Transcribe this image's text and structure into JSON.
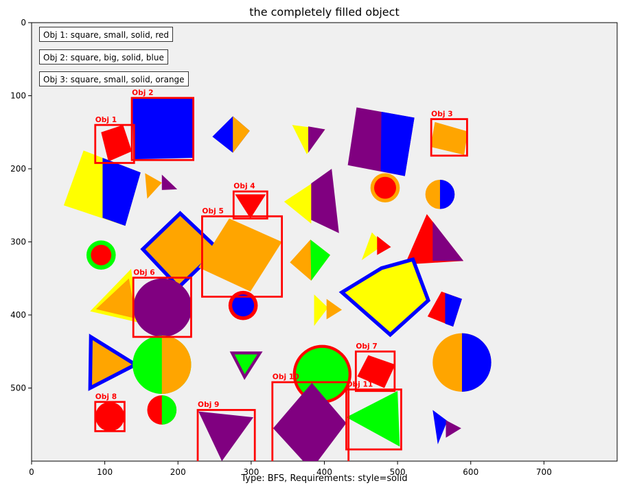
{
  "chart_data": {
    "type": "scatter",
    "title": "the completely filled object",
    "caption": "Type: BFS, Requirements: style=solid",
    "xlim": [
      0,
      800
    ],
    "ylim": [
      600,
      0
    ],
    "x_ticks": [
      0,
      100,
      200,
      300,
      400,
      500,
      600,
      700
    ],
    "y_ticks": [
      0,
      100,
      200,
      300,
      400,
      500
    ],
    "legend": [
      "Obj 1: square, small, solid, red",
      "Obj 2: square, big, solid, blue",
      "Obj 3: square, small, solid, orange"
    ],
    "boxes": [
      {
        "label": "Obj 1",
        "x": [
          87,
          140
        ],
        "y": [
          140,
          192
        ]
      },
      {
        "label": "Obj 2",
        "x": [
          137,
          221
        ],
        "y": [
          103,
          188
        ]
      },
      {
        "label": "Obj 3",
        "x": [
          546,
          595
        ],
        "y": [
          132,
          182
        ]
      },
      {
        "label": "Obj 4",
        "x": [
          276,
          322
        ],
        "y": [
          231,
          268
        ]
      },
      {
        "label": "Obj 5",
        "x": [
          233,
          342
        ],
        "y": [
          265,
          375
        ]
      },
      {
        "label": "Obj 6",
        "x": [
          139,
          218
        ],
        "y": [
          349,
          430
        ]
      },
      {
        "label": "Obj 7",
        "x": [
          443,
          496
        ],
        "y": [
          450,
          504
        ]
      },
      {
        "label": "Obj 8",
        "x": [
          87,
          127
        ],
        "y": [
          519,
          559
        ]
      },
      {
        "label": "Obj 9",
        "x": [
          227,
          305
        ],
        "y": [
          530,
          610
        ]
      },
      {
        "label": "Obj 10",
        "x": [
          329,
          433
        ],
        "y": [
          492,
          610
        ]
      },
      {
        "label": "Obj 11",
        "x": [
          430,
          505
        ],
        "y": [
          502,
          584
        ]
      }
    ],
    "colors": {
      "red": "#ff0000",
      "blue": "#0000ff",
      "orange": "#ffa500",
      "yellow": "#ffff00",
      "purple": "#800080",
      "green": "#00ff00",
      "background": "#f0f0f0",
      "box": "#ff0000"
    }
  }
}
